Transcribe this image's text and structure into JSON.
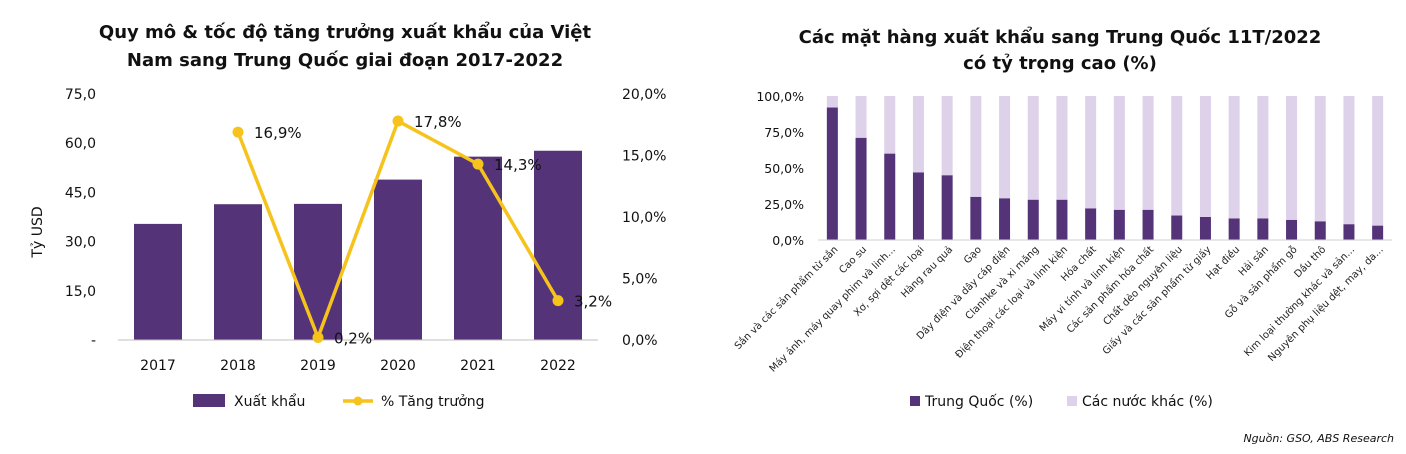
{
  "source": "Nguồn: GSO, ABS Research",
  "chart_data": [
    {
      "type": "bar+line",
      "title_line1": "Quy mô & tốc độ tăng trưởng xuất khẩu của Việt",
      "title_line2": "Nam sang Trung Quốc giai đoạn 2017-2022",
      "ylabel": "Tỷ USD",
      "categories": [
        "2017",
        "2018",
        "2019",
        "2020",
        "2021",
        "2022"
      ],
      "y_ticks": [
        "-",
        "15,0",
        "30,0",
        "45,0",
        "60,0",
        "75,0"
      ],
      "ylim": [
        0,
        75
      ],
      "y2_ticks": [
        "0,0%",
        "5,0%",
        "10,0%",
        "15,0%",
        "20,0%"
      ],
      "y2lim": [
        0,
        20
      ],
      "series": [
        {
          "name": "Xuất khẩu",
          "type": "bar",
          "color": "#553378",
          "values": [
            35.4,
            41.4,
            41.5,
            48.9,
            55.9,
            57.7
          ]
        },
        {
          "name": "% Tăng trưởng",
          "type": "line",
          "axis": "right",
          "color": "#F5C31C",
          "values": [
            null,
            16.9,
            0.2,
            17.8,
            14.3,
            3.2
          ],
          "labels": [
            "",
            "16,9%",
            "0,2%",
            "17,8%",
            "14,3%",
            "3,2%"
          ]
        }
      ],
      "legend_position": "bottom",
      "grid": false
    },
    {
      "type": "stacked-bar",
      "title_line1": "Các mặt hàng xuất khẩu sang Trung Quốc 11T/2022",
      "title_line2": "có tỷ trọng cao (%)",
      "categories": [
        "Sắn và các sản phẩm từ sắn",
        "Cao su",
        "Máy ảnh, máy quay phim và linh...",
        "Xơ, sợi dệt các loại",
        "Hàng rau quả",
        "Gạo",
        "Dây điện và dây cáp điện",
        "Clanhke và xi măng",
        "Điện thoại các loại và linh kiện",
        "Hóa chất",
        "Máy vi tính và linh kiện",
        "Các sản phẩm hóa chất",
        "Chất dẻo nguyên liệu",
        "Giấy và các sản phẩm từ giấy",
        "Hạt điều",
        "Hải sản",
        "Gỗ và sản phẩm gỗ",
        "Dầu thô",
        "Kim loại thường khác và sản...",
        "Nguyên phụ liệu dệt, may, da..."
      ],
      "y_ticks": [
        "0,0%",
        "25,0%",
        "50,0%",
        "75,0%",
        "100,0%"
      ],
      "ylim": [
        0,
        100
      ],
      "series": [
        {
          "name": "Trung Quốc (%)",
          "color": "#553378",
          "values": [
            92,
            71,
            60,
            47,
            45,
            30,
            29,
            28,
            28,
            22,
            21,
            21,
            17,
            16,
            15,
            15,
            14,
            13,
            11,
            10
          ]
        },
        {
          "name": "Các nước khác (%)",
          "color": "#DDD2EA",
          "values": [
            8,
            29,
            40,
            53,
            55,
            70,
            71,
            72,
            72,
            78,
            79,
            79,
            83,
            84,
            85,
            85,
            86,
            87,
            89,
            90
          ]
        }
      ],
      "legend_position": "bottom",
      "grid": false
    }
  ]
}
